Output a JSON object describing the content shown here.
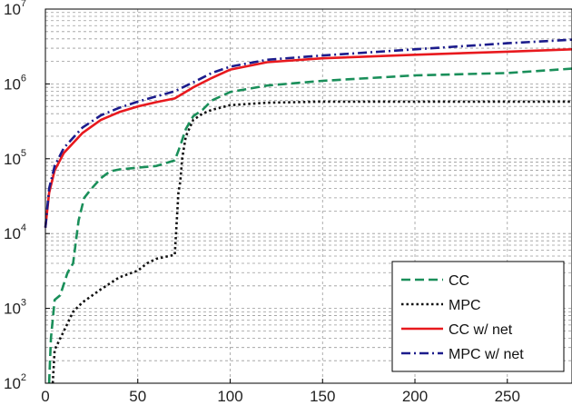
{
  "chart_data": {
    "type": "line",
    "title": "",
    "xlabel": "",
    "ylabel": "",
    "xlim": [
      0,
      285
    ],
    "ylim": [
      100,
      10000000
    ],
    "yscale": "log",
    "grid": true,
    "legend_position": "bottom-right",
    "x_ticks": [
      0,
      50,
      100,
      150,
      200,
      250
    ],
    "y_ticks": [
      {
        "value": 100,
        "base": "10",
        "exp": "2"
      },
      {
        "value": 1000,
        "base": "10",
        "exp": "3"
      },
      {
        "value": 10000,
        "base": "10",
        "exp": "4"
      },
      {
        "value": 100000,
        "base": "10",
        "exp": "5"
      },
      {
        "value": 1000000,
        "base": "10",
        "exp": "6"
      },
      {
        "value": 10000000,
        "base": "10",
        "exp": "7"
      }
    ],
    "series": [
      {
        "name": "CC",
        "color": "#1a8f5a",
        "dash": "dashed",
        "points": [
          [
            2,
            100
          ],
          [
            3,
            400
          ],
          [
            5,
            1300
          ],
          [
            8,
            1500
          ],
          [
            12,
            3000
          ],
          [
            15,
            4000
          ],
          [
            18,
            15000
          ],
          [
            21,
            30000
          ],
          [
            25,
            40000
          ],
          [
            30,
            55000
          ],
          [
            35,
            68000
          ],
          [
            40,
            72000
          ],
          [
            50,
            76000
          ],
          [
            60,
            80000
          ],
          [
            70,
            95000
          ],
          [
            73,
            150000
          ],
          [
            76,
            250000
          ],
          [
            80,
            370000
          ],
          [
            85,
            450000
          ],
          [
            90,
            600000
          ],
          [
            100,
            780000
          ],
          [
            120,
            950000
          ],
          [
            150,
            1100000
          ],
          [
            200,
            1300000
          ],
          [
            250,
            1400000
          ],
          [
            285,
            1600000
          ]
        ]
      },
      {
        "name": "MPC",
        "color": "#111111",
        "dash": "dotted",
        "points": [
          [
            4,
            100
          ],
          [
            5,
            280
          ],
          [
            10,
            500
          ],
          [
            15,
            900
          ],
          [
            20,
            1200
          ],
          [
            30,
            1800
          ],
          [
            40,
            2600
          ],
          [
            50,
            3200
          ],
          [
            55,
            4000
          ],
          [
            60,
            4600
          ],
          [
            70,
            5200
          ],
          [
            72,
            35000
          ],
          [
            73,
            50000
          ],
          [
            74,
            100000
          ],
          [
            76,
            200000
          ],
          [
            80,
            330000
          ],
          [
            85,
            400000
          ],
          [
            90,
            450000
          ],
          [
            100,
            520000
          ],
          [
            120,
            560000
          ],
          [
            150,
            580000
          ],
          [
            200,
            580000
          ],
          [
            285,
            580000
          ]
        ]
      },
      {
        "name": "CC w/ net",
        "color": "#e8191e",
        "dash": "solid",
        "points": [
          [
            0,
            12000
          ],
          [
            2,
            35000
          ],
          [
            5,
            70000
          ],
          [
            10,
            120000
          ],
          [
            20,
            220000
          ],
          [
            30,
            330000
          ],
          [
            40,
            420000
          ],
          [
            50,
            500000
          ],
          [
            60,
            570000
          ],
          [
            70,
            640000
          ],
          [
            80,
            900000
          ],
          [
            90,
            1200000
          ],
          [
            100,
            1550000
          ],
          [
            120,
            1950000
          ],
          [
            150,
            2200000
          ],
          [
            200,
            2450000
          ],
          [
            250,
            2700000
          ],
          [
            285,
            2900000
          ]
        ]
      },
      {
        "name": "MPC w/ net",
        "color": "#1c1c8c",
        "dash": "dashdot",
        "points": [
          [
            0,
            12000
          ],
          [
            2,
            40000
          ],
          [
            5,
            80000
          ],
          [
            10,
            140000
          ],
          [
            20,
            260000
          ],
          [
            30,
            380000
          ],
          [
            40,
            480000
          ],
          [
            50,
            580000
          ],
          [
            60,
            680000
          ],
          [
            70,
            800000
          ],
          [
            80,
            1050000
          ],
          [
            90,
            1400000
          ],
          [
            100,
            1700000
          ],
          [
            120,
            2100000
          ],
          [
            150,
            2400000
          ],
          [
            200,
            2900000
          ],
          [
            250,
            3500000
          ],
          [
            285,
            3900000
          ]
        ]
      }
    ]
  }
}
